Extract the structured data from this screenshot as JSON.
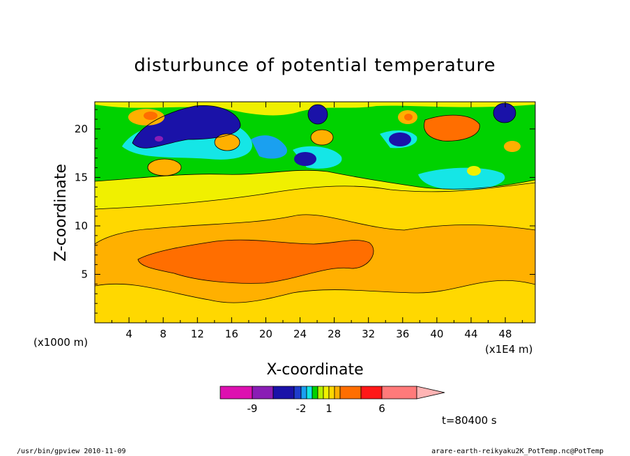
{
  "chart_data": {
    "type": "heatmap",
    "title": "disturbunce of potential temperature",
    "xlabel": "X-coordinate",
    "ylabel": "Z-coordinate",
    "x_unit": "(x1000 m)",
    "x_unit2": "(x1E4 m)",
    "xlim": [
      0,
      51.5
    ],
    "ylim": [
      0,
      22.8
    ],
    "xticks": [
      4,
      8,
      12,
      16,
      20,
      24,
      28,
      32,
      36,
      40,
      44,
      48
    ],
    "yticks": [
      5,
      10,
      15,
      20
    ],
    "colorbar": {
      "levels": [
        -12,
        -9,
        -6,
        -3,
        -2,
        -1.5,
        -1,
        -0.5,
        0.5,
        1,
        1.5,
        2,
        3,
        6,
        9
      ],
      "colors": [
        "#dd10b0",
        "#8a1db5",
        "#1a12a8",
        "#1e3ccc",
        "#1aa0f0",
        "#15e6e6",
        "#00d200",
        "#b8f000",
        "#f0f000",
        "#ffd800",
        "#ffb000",
        "#ff6e00",
        "#ff1818",
        "#ff7a7a",
        "#ffb4b4"
      ],
      "labels": [
        {
          "text": "-9",
          "value": -9
        },
        {
          "text": "-2",
          "value": -2
        },
        {
          "text": "1",
          "value": 1
        },
        {
          "text": "6",
          "value": 6
        }
      ]
    },
    "features": [
      {
        "name": "lower warm band",
        "level": 3,
        "x": [
          6,
          34
        ],
        "z": [
          4,
          8.5
        ]
      },
      {
        "name": "upper cold core",
        "level": -6,
        "x": [
          4,
          14
        ],
        "z": [
          18,
          22
        ]
      },
      {
        "name": "warm cell",
        "level": 3,
        "x": [
          36,
          46
        ],
        "z": [
          19,
          21.5
        ]
      }
    ],
    "grid": false,
    "legend_position": "bottom"
  },
  "time_label": "t=80400 s",
  "footer_left": "/usr/bin/gpview   2010-11-09",
  "footer_right": "arare-earth-reikyaku2K_PotTemp.nc@PotTemp"
}
